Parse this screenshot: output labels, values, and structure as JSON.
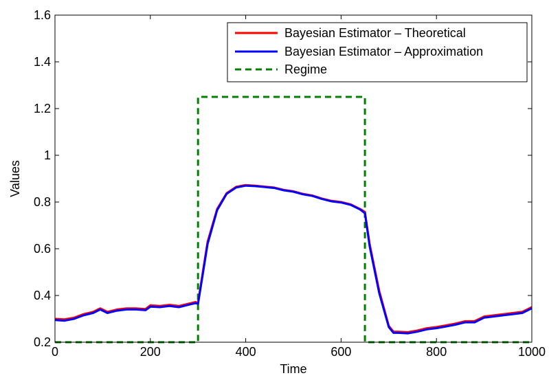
{
  "chart_data": {
    "type": "line",
    "title": "",
    "xlabel": "Time",
    "ylabel": "Values",
    "xlim": [
      0,
      1000
    ],
    "ylim": [
      0.2,
      1.6
    ],
    "xticks": [
      0,
      200,
      400,
      600,
      800,
      1000
    ],
    "xtick_labels": [
      "0",
      "200",
      "400",
      "600",
      "800",
      "1000"
    ],
    "yticks": [
      0.2,
      0.4,
      0.6,
      0.8,
      1.0,
      1.2,
      1.4,
      1.6
    ],
    "ytick_labels": [
      "0.2",
      "0.4",
      "0.6",
      "0.8",
      "1",
      "1.2",
      "1.4",
      "1.6"
    ],
    "grid": false,
    "legend_position": "top-right",
    "series": [
      {
        "name": "Bayesian Estimator – Theoretical",
        "color": "#ff0000",
        "style": "solid",
        "x": [
          0,
          20,
          40,
          60,
          80,
          95,
          110,
          130,
          150,
          170,
          190,
          200,
          220,
          240,
          260,
          280,
          295,
          300,
          310,
          320,
          340,
          360,
          380,
          400,
          420,
          440,
          460,
          480,
          500,
          520,
          540,
          560,
          580,
          600,
          620,
          640,
          650,
          660,
          680,
          700,
          710,
          720,
          740,
          760,
          780,
          800,
          820,
          840,
          860,
          880,
          900,
          920,
          940,
          960,
          980,
          1000
        ],
        "y": [
          0.3,
          0.298,
          0.305,
          0.32,
          0.33,
          0.345,
          0.33,
          0.34,
          0.345,
          0.345,
          0.342,
          0.358,
          0.355,
          0.36,
          0.355,
          0.365,
          0.372,
          0.368,
          0.5,
          0.63,
          0.77,
          0.838,
          0.865,
          0.873,
          0.87,
          0.866,
          0.862,
          0.852,
          0.846,
          0.835,
          0.828,
          0.815,
          0.805,
          0.8,
          0.79,
          0.77,
          0.758,
          0.62,
          0.42,
          0.27,
          0.245,
          0.245,
          0.243,
          0.25,
          0.26,
          0.265,
          0.272,
          0.28,
          0.29,
          0.29,
          0.31,
          0.315,
          0.32,
          0.325,
          0.33,
          0.35
        ]
      },
      {
        "name": "Bayesian Estimator – Approximation",
        "color": "#0000ff",
        "style": "solid",
        "x": [
          0,
          20,
          40,
          60,
          80,
          95,
          110,
          130,
          150,
          170,
          190,
          200,
          220,
          240,
          260,
          280,
          295,
          300,
          310,
          320,
          340,
          360,
          380,
          400,
          420,
          440,
          460,
          480,
          500,
          520,
          540,
          560,
          580,
          600,
          620,
          640,
          650,
          660,
          680,
          700,
          710,
          720,
          740,
          760,
          780,
          800,
          820,
          840,
          860,
          880,
          900,
          920,
          940,
          960,
          980,
          1000
        ],
        "y": [
          0.295,
          0.292,
          0.3,
          0.315,
          0.325,
          0.34,
          0.325,
          0.335,
          0.34,
          0.34,
          0.337,
          0.352,
          0.35,
          0.355,
          0.35,
          0.36,
          0.367,
          0.364,
          0.49,
          0.62,
          0.765,
          0.835,
          0.862,
          0.87,
          0.868,
          0.864,
          0.86,
          0.85,
          0.844,
          0.833,
          0.826,
          0.813,
          0.803,
          0.798,
          0.788,
          0.768,
          0.752,
          0.61,
          0.41,
          0.265,
          0.24,
          0.24,
          0.238,
          0.245,
          0.255,
          0.26,
          0.267,
          0.275,
          0.285,
          0.285,
          0.305,
          0.31,
          0.315,
          0.32,
          0.325,
          0.345
        ]
      },
      {
        "name": "Regime",
        "color": "#008000",
        "style": "dashed",
        "x": [
          0,
          300,
          300,
          650,
          650,
          1000
        ],
        "y": [
          0.2,
          0.2,
          1.25,
          1.25,
          0.2,
          0.2
        ]
      }
    ]
  }
}
